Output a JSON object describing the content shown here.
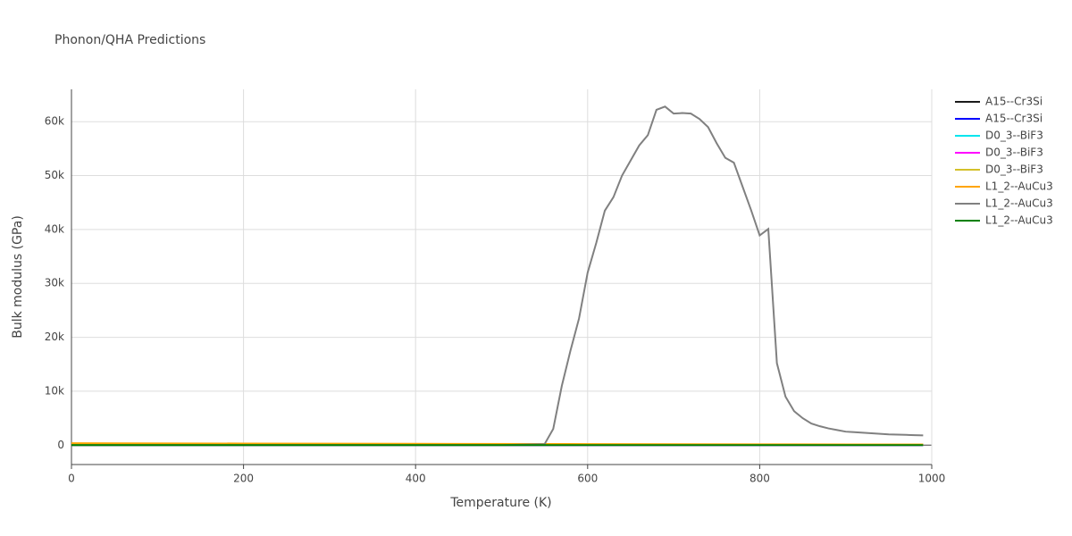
{
  "chart_data": {
    "type": "line",
    "title": "Phonon/QHA Predictions",
    "x_label": "Temperature (K)",
    "y_label": "Bulk modulus (GPa)",
    "xlim": [
      0,
      1000
    ],
    "xticks": [
      0,
      200,
      400,
      600,
      800,
      1000
    ],
    "ylim": [
      -3600,
      66000
    ],
    "yticks": [
      0,
      {
        "value": 10000,
        "label": "10k"
      },
      {
        "value": 20000,
        "label": "20k"
      },
      {
        "value": 30000,
        "label": "30k"
      },
      {
        "value": 40000,
        "label": "40k"
      },
      {
        "value": 50000,
        "label": "50k"
      },
      {
        "value": 60000,
        "label": "60k"
      }
    ],
    "grid": true,
    "series": [
      {
        "name": "A15--Cr3Si",
        "color": "#1a1a1a",
        "x": [
          0,
          200,
          400,
          600,
          800,
          990
        ],
        "values": [
          0,
          0,
          0,
          0,
          0,
          0
        ]
      },
      {
        "name": "A15--Cr3Si",
        "color": "#0000ff",
        "x": [
          0,
          200,
          400,
          600,
          800,
          990
        ],
        "values": [
          0,
          0,
          0,
          0,
          0,
          0
        ]
      },
      {
        "name": "D0_3--BiF3",
        "color": "#00e5ee",
        "x": [
          0,
          200,
          400,
          600,
          800,
          990
        ],
        "values": [
          0,
          0,
          0,
          0,
          0,
          0
        ]
      },
      {
        "name": "D0_3--BiF3",
        "color": "#ff00ff",
        "x": [
          0,
          200,
          400,
          600,
          800,
          990
        ],
        "values": [
          0,
          0,
          0,
          0,
          0,
          0
        ]
      },
      {
        "name": "D0_3--BiF3",
        "color": "#d4c02a",
        "x": [
          0,
          200,
          400,
          600,
          800,
          990
        ],
        "values": [
          250,
          220,
          180,
          150,
          120,
          100
        ]
      },
      {
        "name": "L1_2--AuCu3",
        "color": "#ffa500",
        "x": [
          0,
          200,
          400,
          600,
          800,
          990
        ],
        "values": [
          350,
          300,
          250,
          200,
          150,
          100
        ]
      },
      {
        "name": "L1_2--AuCu3",
        "color": "#808080",
        "x": [
          0,
          100,
          200,
          300,
          400,
          500,
          550,
          560,
          570,
          580,
          590,
          600,
          610,
          620,
          630,
          640,
          650,
          660,
          670,
          680,
          690,
          700,
          710,
          720,
          730,
          740,
          750,
          760,
          770,
          780,
          790,
          800,
          810,
          820,
          830,
          840,
          850,
          860,
          870,
          880,
          890,
          900,
          910,
          920,
          930,
          940,
          950,
          960,
          970,
          980,
          990
        ],
        "values": [
          0,
          0,
          0,
          0,
          0,
          0,
          200,
          3000,
          11000,
          17500,
          23500,
          32000,
          37500,
          43500,
          46000,
          50000,
          52800,
          55600,
          57500,
          62200,
          62800,
          61500,
          61600,
          61500,
          60500,
          59000,
          56000,
          53300,
          52400,
          48000,
          43600,
          38900,
          40100,
          15200,
          9000,
          6300,
          5000,
          4000,
          3500,
          3100,
          2800,
          2500,
          2400,
          2300,
          2200,
          2100,
          2000,
          1950,
          1900,
          1850,
          1800
        ]
      },
      {
        "name": "L1_2--AuCu3",
        "color": "#008000",
        "x": [
          0,
          200,
          400,
          600,
          800,
          990
        ],
        "values": [
          0,
          0,
          0,
          0,
          0,
          0
        ]
      }
    ]
  }
}
